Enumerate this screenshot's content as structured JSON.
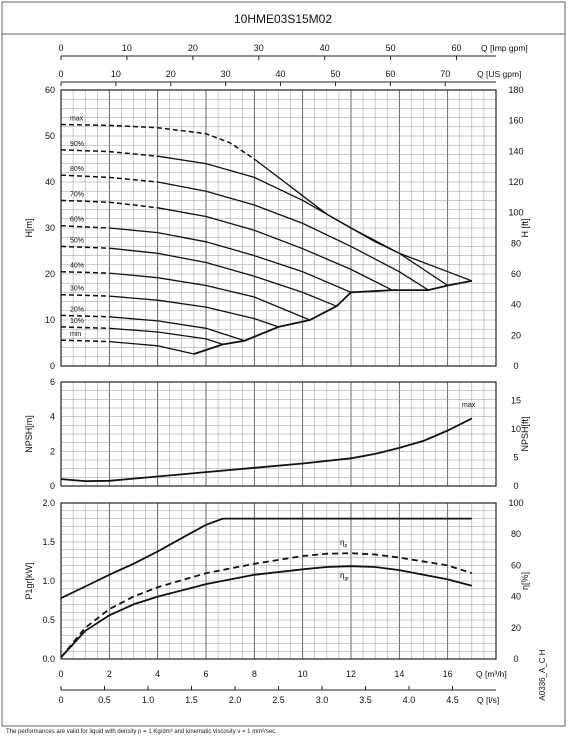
{
  "chart_data": {
    "type": "line",
    "title": "10HME03S15M02",
    "top_axes": [
      {
        "label": "Q [Imp gpm]",
        "ticks": [
          0,
          10,
          20,
          30,
          40,
          50,
          60
        ]
      },
      {
        "label": "Q [US gpm]",
        "ticks": [
          0,
          10,
          20,
          30,
          40,
          50,
          60,
          70
        ]
      }
    ],
    "bottom_axes": [
      {
        "label": "Q [m³/h]",
        "ticks": [
          0,
          2,
          4,
          6,
          8,
          10,
          12,
          14,
          16
        ],
        "xlim": [
          0,
          18
        ]
      },
      {
        "label": "Q [l/s]",
        "ticks": [
          0,
          0.5,
          1.0,
          1.5,
          2.0,
          2.5,
          3.0,
          3.5,
          4.0,
          4.5
        ]
      }
    ],
    "side_code": "A0336_A_C H",
    "panels": {
      "head": {
        "ylabel_left": "H[m]",
        "ylim": [
          0,
          60
        ],
        "yticks_left": [
          0,
          10,
          20,
          30,
          40,
          50,
          60
        ],
        "ylabel_right": "H [ft]",
        "yticks_right": [
          0,
          20,
          40,
          60,
          80,
          100,
          120,
          140,
          160,
          180
        ],
        "series": [
          {
            "name": "max",
            "values": [
              [
                0,
                52.5
              ],
              [
                2,
                52.3
              ],
              [
                4,
                51.8
              ],
              [
                6,
                50.5
              ],
              [
                7,
                48.5
              ],
              [
                8,
                45
              ],
              [
                9,
                41
              ],
              [
                10,
                37
              ],
              [
                11,
                33
              ],
              [
                12,
                30
              ],
              [
                13,
                27
              ],
              [
                14,
                24.5
              ],
              [
                15,
                22.5
              ],
              [
                16,
                20.5
              ],
              [
                17,
                18.5
              ]
            ]
          },
          {
            "name": "90%",
            "values": [
              [
                0,
                47
              ],
              [
                2,
                46.6
              ],
              [
                4,
                45.6
              ],
              [
                6,
                44
              ],
              [
                8,
                41
              ],
              [
                10,
                36
              ],
              [
                12,
                30
              ],
              [
                14,
                24.5
              ],
              [
                16,
                17.5
              ]
            ]
          },
          {
            "name": "80%",
            "values": [
              [
                0,
                41.5
              ],
              [
                2,
                41
              ],
              [
                4,
                40
              ],
              [
                6,
                38
              ],
              [
                8,
                35
              ],
              [
                10,
                31
              ],
              [
                12,
                26
              ],
              [
                14,
                20.5
              ],
              [
                15.2,
                16.5
              ]
            ]
          },
          {
            "name": "70%",
            "values": [
              [
                0,
                36
              ],
              [
                2,
                35.6
              ],
              [
                4,
                34.4
              ],
              [
                6,
                32.5
              ],
              [
                8,
                29.5
              ],
              [
                10,
                25.5
              ],
              [
                12,
                21
              ],
              [
                13.7,
                16.5
              ]
            ]
          },
          {
            "name": "60%",
            "values": [
              [
                0,
                30.5
              ],
              [
                2,
                30
              ],
              [
                4,
                29
              ],
              [
                6,
                27
              ],
              [
                8,
                24
              ],
              [
                10,
                20.5
              ],
              [
                12,
                16
              ]
            ]
          },
          {
            "name": "50%",
            "values": [
              [
                0,
                26
              ],
              [
                2,
                25.6
              ],
              [
                4,
                24.5
              ],
              [
                6,
                22.5
              ],
              [
                8,
                19.5
              ],
              [
                10,
                16
              ],
              [
                11.4,
                13
              ]
            ]
          },
          {
            "name": "40%",
            "values": [
              [
                0,
                20.5
              ],
              [
                2,
                20.2
              ],
              [
                4,
                19.2
              ],
              [
                6,
                17.5
              ],
              [
                8,
                15
              ],
              [
                10.3,
                10
              ]
            ]
          },
          {
            "name": "30%",
            "values": [
              [
                0,
                15.5
              ],
              [
                2,
                15.2
              ],
              [
                4,
                14.3
              ],
              [
                6,
                12.8
              ],
              [
                8,
                10.3
              ],
              [
                9,
                8.5
              ]
            ]
          },
          {
            "name": "20%",
            "values": [
              [
                0,
                11
              ],
              [
                2,
                10.7
              ],
              [
                4,
                9.8
              ],
              [
                6,
                8.2
              ],
              [
                7.6,
                5.5
              ]
            ]
          },
          {
            "name": "10%",
            "values": [
              [
                0,
                8.5
              ],
              [
                2,
                8.2
              ],
              [
                4,
                7.4
              ],
              [
                6,
                5.9
              ],
              [
                6.7,
                4.7
              ]
            ]
          },
          {
            "name": "min",
            "values": [
              [
                0,
                5.6
              ],
              [
                2,
                5.3
              ],
              [
                4,
                4.4
              ],
              [
                5.5,
                2.6
              ]
            ]
          },
          {
            "name": "",
            "values": [
              [
                5.5,
                2.6
              ],
              [
                6.7,
                4.7
              ],
              [
                7.6,
                5.5
              ],
              [
                9,
                8.5
              ],
              [
                10.3,
                10
              ],
              [
                11.4,
                13
              ],
              [
                12,
                16
              ],
              [
                13.7,
                16.5
              ],
              [
                15.2,
                16.5
              ],
              [
                16,
                17.5
              ],
              [
                17,
                18.5
              ]
            ]
          }
        ]
      },
      "npsh": {
        "ylabel_left": "NPSH[m]",
        "ylim": [
          0,
          6
        ],
        "yticks_left": [
          0,
          2,
          4,
          6
        ],
        "ylabel_right": "NPSH[ft]",
        "yticks_right": [
          0,
          5,
          10,
          15
        ],
        "annotation": "max",
        "series": [
          {
            "name": "max",
            "values": [
              [
                0,
                0.4
              ],
              [
                1,
                0.28
              ],
              [
                2,
                0.3
              ],
              [
                4,
                0.55
              ],
              [
                6,
                0.8
              ],
              [
                8,
                1.05
              ],
              [
                10,
                1.3
              ],
              [
                12,
                1.6
              ],
              [
                13,
                1.85
              ],
              [
                14,
                2.2
              ],
              [
                15,
                2.6
              ],
              [
                16,
                3.2
              ],
              [
                17,
                3.9
              ]
            ]
          }
        ]
      },
      "power": {
        "ylabel_left": "P1gr[kW]",
        "ylim": [
          0,
          2.0
        ],
        "yticks_left": [
          0.0,
          0.5,
          1.0,
          1.5,
          2.0
        ],
        "ylabel_right": "η[%]",
        "yticks_right": [
          0,
          20,
          40,
          60,
          80,
          100
        ],
        "series": [
          {
            "name": "P1",
            "values": [
              [
                0,
                0.78
              ],
              [
                1,
                0.93
              ],
              [
                2,
                1.08
              ],
              [
                3,
                1.22
              ],
              [
                4,
                1.38
              ],
              [
                5,
                1.55
              ],
              [
                6,
                1.72
              ],
              [
                6.7,
                1.8
              ],
              [
                8,
                1.8
              ],
              [
                12,
                1.8
              ],
              [
                17,
                1.8
              ]
            ]
          },
          {
            "name": "ηp",
            "values": [
              [
                0,
                1
              ],
              [
                1,
                20
              ],
              [
                2,
                32
              ],
              [
                3,
                40
              ],
              [
                4,
                46
              ],
              [
                6,
                55
              ],
              [
                8,
                61
              ],
              [
                10,
                66
              ],
              [
                11,
                67.5
              ],
              [
                12,
                67.8
              ],
              [
                13,
                67
              ],
              [
                14,
                65
              ],
              [
                16,
                60
              ],
              [
                17,
                55
              ]
            ]
          },
          {
            "name": "ηgr",
            "values": [
              [
                0,
                1
              ],
              [
                1,
                18
              ],
              [
                2,
                28
              ],
              [
                3,
                35
              ],
              [
                4,
                40
              ],
              [
                6,
                48
              ],
              [
                8,
                54
              ],
              [
                10,
                57.5
              ],
              [
                11,
                59
              ],
              [
                12,
                59.5
              ],
              [
                13,
                59
              ],
              [
                14,
                57
              ],
              [
                16,
                51
              ],
              [
                17,
                47
              ]
            ]
          }
        ]
      }
    }
  },
  "footnote": "The performances are valid for liquid with density ρ = 1 Kg/dm³ and kinematic viscosity ν = 1 mm²/sec."
}
